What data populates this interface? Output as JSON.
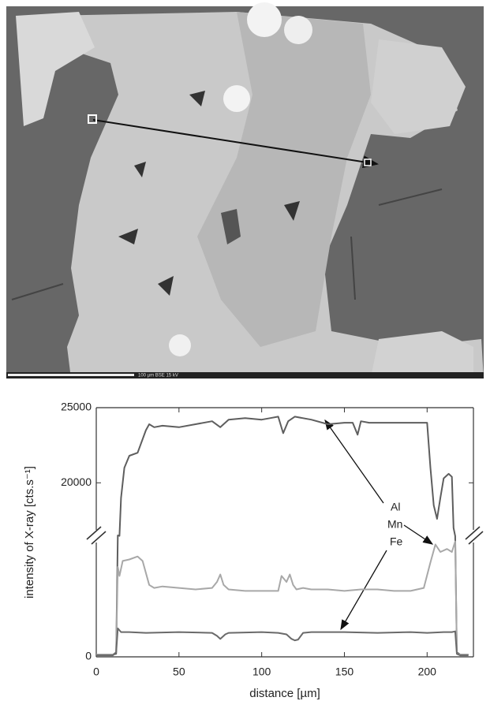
{
  "image": {
    "scale_text": "100 µm  BSE  15 kV"
  },
  "chart_data": {
    "type": "line",
    "x_label": "distance [µm]",
    "y_label": "intensity of X-ray   [cts.s⁻¹]",
    "xlim": [
      0,
      228
    ],
    "xticks": [
      0,
      50,
      100,
      150,
      200
    ],
    "y_segments": [
      {
        "ylim": [
          0,
          8000
        ],
        "yticks": [
          0
        ]
      },
      {
        "ylim": [
          16500,
          25000
        ],
        "yticks": [
          20000,
          25000
        ]
      }
    ],
    "annotations": [
      "Al",
      "Mn",
      "Fe"
    ],
    "series": [
      {
        "name": "Al",
        "color": "#5e5e5e",
        "x": [
          0,
          5,
          10,
          12,
          13,
          14,
          15,
          17,
          20,
          25,
          30,
          32,
          35,
          40,
          50,
          60,
          70,
          75,
          80,
          90,
          100,
          105,
          110,
          113,
          116,
          120,
          130,
          140,
          150,
          155,
          158,
          160,
          165,
          170,
          180,
          190,
          195,
          200,
          202,
          204,
          206,
          208,
          210,
          213,
          215,
          216,
          217,
          218,
          220,
          225
        ],
        "values": [
          150,
          150,
          150,
          200,
          16500,
          14000,
          19000,
          21000,
          21800,
          22000,
          23500,
          23900,
          23700,
          23800,
          23700,
          23900,
          24100,
          23700,
          24200,
          24300,
          24200,
          24300,
          24400,
          23300,
          24100,
          24400,
          24200,
          23900,
          24000,
          24000,
          23200,
          24100,
          24000,
          24000,
          24000,
          24000,
          24000,
          24000,
          21000,
          18500,
          17600,
          19000,
          20300,
          20600,
          20400,
          17000,
          13000,
          300,
          150,
          150
        ]
      },
      {
        "name": "Mn",
        "color": "#a8a8a8",
        "x": [
          0,
          10,
          12,
          13,
          14,
          16,
          20,
          25,
          28,
          32,
          35,
          40,
          50,
          60,
          70,
          73,
          75,
          77,
          80,
          90,
          100,
          110,
          112,
          115,
          117,
          119,
          121,
          125,
          130,
          140,
          150,
          160,
          170,
          180,
          190,
          198,
          202,
          205,
          208,
          212,
          215,
          217,
          218,
          220,
          225
        ],
        "values": [
          150,
          150,
          300,
          6000,
          5400,
          6400,
          6500,
          6700,
          6400,
          4800,
          4600,
          4700,
          4600,
          4500,
          4600,
          5000,
          5500,
          4800,
          4500,
          4400,
          4400,
          4400,
          5400,
          5000,
          5500,
          4800,
          4500,
          4600,
          4500,
          4500,
          4400,
          4500,
          4500,
          4400,
          4400,
          4600,
          6300,
          7500,
          7000,
          7200,
          7000,
          7700,
          200,
          150,
          150
        ]
      },
      {
        "name": "Fe",
        "color": "#6a6a6a",
        "x": [
          0,
          10,
          12,
          13,
          15,
          20,
          30,
          50,
          70,
          73,
          75,
          78,
          80,
          100,
          110,
          115,
          118,
          120,
          122,
          125,
          130,
          150,
          170,
          190,
          200,
          210,
          215,
          217,
          218,
          220,
          225
        ],
        "values": [
          100,
          100,
          300,
          1900,
          1650,
          1650,
          1600,
          1650,
          1600,
          1400,
          1200,
          1500,
          1600,
          1650,
          1600,
          1500,
          1200,
          1100,
          1150,
          1600,
          1650,
          1650,
          1600,
          1650,
          1600,
          1650,
          1650,
          1700,
          200,
          100,
          100
        ]
      }
    ]
  }
}
